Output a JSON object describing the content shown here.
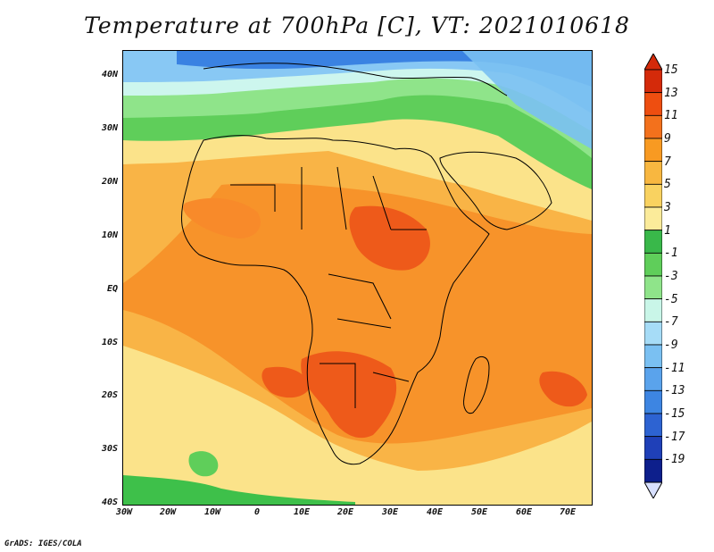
{
  "title": "Temperature at 700hPa [C], VT: 2021010618",
  "credit": "GrADS: IGES/COLA",
  "y_axis_labels": [
    "40N",
    "30N",
    "20N",
    "10N",
    "EQ",
    "10S",
    "20S",
    "30S",
    "40S"
  ],
  "x_axis_labels": [
    "30W",
    "20W",
    "10W",
    "0",
    "10E",
    "20E",
    "30E",
    "40E",
    "50E",
    "60E",
    "70E"
  ],
  "colorbar": {
    "labels": [
      "15",
      "13",
      "11",
      "9",
      "7",
      "5",
      "3",
      "1",
      "-1",
      "-3",
      "-5",
      "-7",
      "-9",
      "-11",
      "-13",
      "-15",
      "-17",
      "-19"
    ],
    "colors_top_to_bottom": [
      "#d42a0a",
      "#ee4e10",
      "#f3711c",
      "#f89a22",
      "#f8b740",
      "#f9d260",
      "#fbeb9a",
      "#39b84a",
      "#5fce5a",
      "#8fe48a",
      "#c9f6e8",
      "#a6dcf7",
      "#7ac0f2",
      "#5aa3ec",
      "#3d85e2",
      "#2d63d2",
      "#1f40b8",
      "#0d1f8c"
    ]
  },
  "map_palette": {
    "deep_orange": "#ee5a1a",
    "orange": "#f7932a",
    "light_orange": "#f9b446",
    "yellow": "#fbe38a",
    "green": "#3ec04a",
    "light_green": "#8fe48a",
    "cyan": "#cdf6ee",
    "light_blue": "#88c8f4",
    "blue": "#3a82e2",
    "coastline": "#000000"
  }
}
